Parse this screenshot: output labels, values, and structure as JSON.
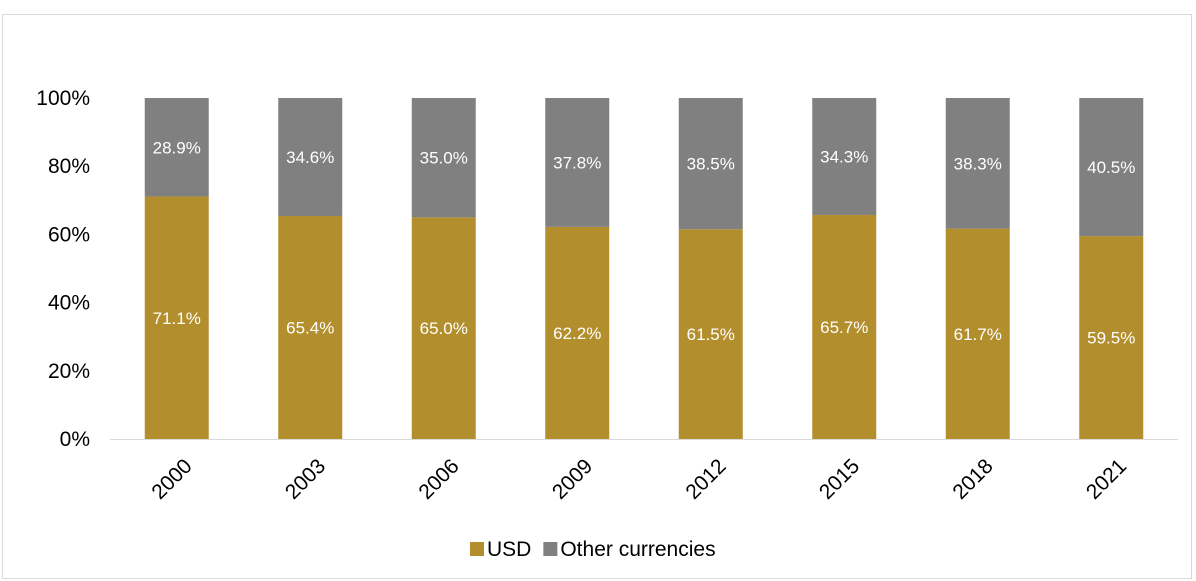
{
  "chart_data": {
    "type": "bar",
    "stacked": true,
    "categories": [
      "2000",
      "2003",
      "2006",
      "2009",
      "2012",
      "2015",
      "2018",
      "2021"
    ],
    "series": [
      {
        "name": "USD",
        "color": "#B38E2D",
        "values": [
          71.1,
          65.4,
          65.0,
          62.2,
          61.5,
          65.7,
          61.7,
          59.5
        ],
        "labels": [
          "71.1%",
          "65.4%",
          "65.0%",
          "62.2%",
          "61.5%",
          "65.7%",
          "61.7%",
          "59.5%"
        ]
      },
      {
        "name": "Other currencies",
        "color": "#808080",
        "values": [
          28.9,
          34.6,
          35.0,
          37.8,
          38.5,
          34.3,
          38.3,
          40.5
        ],
        "labels": [
          "28.9%",
          "34.6%",
          "35.0%",
          "37.8%",
          "38.5%",
          "34.3%",
          "38.3%",
          "40.5%"
        ]
      }
    ],
    "ylim": [
      0,
      100
    ],
    "yticks": [
      "0%",
      "20%",
      "40%",
      "60%",
      "80%",
      "100%"
    ],
    "ytick_values": [
      0,
      20,
      40,
      60,
      80,
      100
    ],
    "legend_position": "bottom",
    "grid": false,
    "title": "",
    "xlabel": "",
    "ylabel": ""
  }
}
